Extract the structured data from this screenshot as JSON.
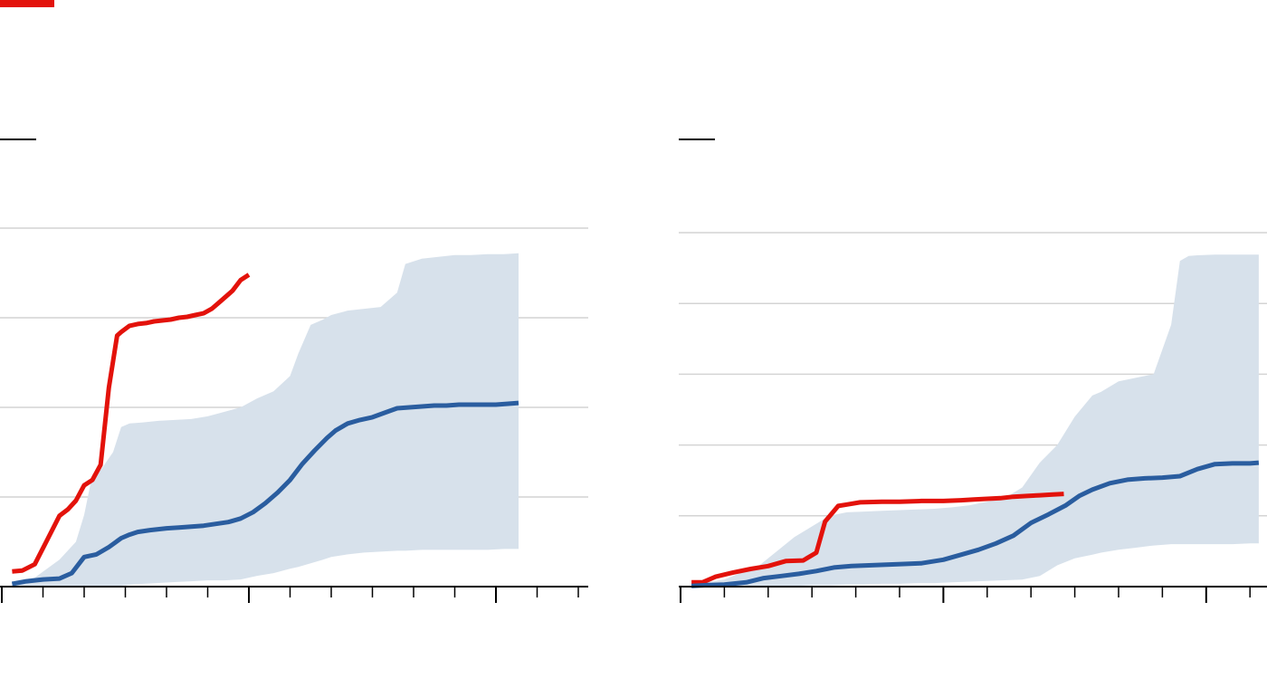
{
  "colors": {
    "accent": "#e3120b",
    "current": "#e3120b",
    "average": "#2a5d9f",
    "range": "#d7e1eb",
    "grid": "#d4d4d4",
    "axis": "#000000"
  },
  "chart_data": [
    {
      "type": "line",
      "grid": true,
      "x_ticks": [
        0,
        1,
        2,
        3,
        4,
        5,
        6,
        7,
        8,
        9,
        10,
        11,
        12,
        13,
        14
      ],
      "xlim": [
        0,
        14
      ],
      "ylim": [
        0,
        4
      ],
      "gridlines": [
        1,
        2,
        3,
        4
      ],
      "series": [
        {
          "role": "current",
          "x": [
            0.25,
            0.5,
            0.8,
            1.1,
            1.4,
            1.6,
            1.8,
            2.0,
            2.2,
            2.4,
            2.6,
            2.8,
            2.9,
            3.1,
            3.3,
            3.5,
            3.7,
            3.9,
            4.1,
            4.3,
            4.5,
            4.7,
            4.9,
            5.1,
            5.3,
            5.6,
            5.8,
            6.0,
            6.2,
            6.4,
            6.6,
            6.75
          ],
          "y": [
            0.17,
            0.18,
            0.25,
            0.52,
            0.79,
            0.86,
            0.96,
            1.13,
            1.19,
            1.36,
            2.22,
            2.8,
            2.84,
            2.91,
            2.93,
            2.94,
            2.96,
            2.97,
            2.98,
            3.0,
            3.01,
            3.03,
            3.05,
            3.1,
            3.18,
            3.3,
            3.42,
            3.48,
            null,
            null,
            null,
            null
          ]
        },
        {
          "role": "average",
          "x": [
            0.25,
            0.6,
            1.0,
            1.4,
            1.7,
            2.0,
            2.3,
            2.6,
            2.9,
            3.1,
            3.3,
            3.6,
            3.8,
            4.0,
            4.3,
            4.6,
            4.9,
            5.2,
            5.5,
            5.8,
            6.1,
            6.4,
            6.7,
            7.0,
            7.3,
            7.6,
            7.9,
            8.1,
            8.4,
            8.7,
            9.0,
            9.3,
            9.6,
            9.9,
            10.2,
            10.5,
            10.8,
            11.1,
            11.4,
            11.7,
            12.0,
            12.3,
            12.55
          ],
          "y": [
            0.03,
            0.06,
            0.08,
            0.09,
            0.15,
            0.33,
            0.36,
            0.44,
            0.54,
            0.58,
            0.61,
            0.63,
            0.64,
            0.65,
            0.66,
            0.67,
            0.68,
            0.7,
            0.72,
            0.76,
            0.83,
            0.93,
            1.05,
            1.19,
            1.37,
            1.52,
            1.66,
            1.74,
            1.82,
            1.86,
            1.89,
            1.94,
            1.99,
            2.0,
            2.01,
            2.02,
            2.02,
            2.03,
            2.03,
            2.03,
            2.03,
            2.04,
            2.05
          ]
        }
      ],
      "band": {
        "x": [
          0.25,
          0.8,
          1.4,
          1.8,
          2.0,
          2.2,
          2.4,
          2.7,
          2.9,
          3.1,
          3.4,
          3.8,
          4.2,
          4.6,
          5.0,
          5.4,
          5.8,
          6.2,
          6.6,
          7.0,
          7.2,
          7.5,
          7.8,
          8.0,
          8.4,
          8.8,
          9.2,
          9.6,
          9.8,
          10.2,
          10.6,
          11.0,
          11.4,
          11.8,
          12.2,
          12.55
        ],
        "low": [
          0.0,
          0.0,
          0.0,
          0.0,
          0.0,
          0.0,
          0.0,
          0.01,
          0.01,
          0.02,
          0.03,
          0.04,
          0.05,
          0.06,
          0.07,
          0.07,
          0.08,
          0.12,
          0.15,
          0.2,
          0.22,
          0.26,
          0.3,
          0.33,
          0.36,
          0.38,
          0.39,
          0.4,
          0.4,
          0.41,
          0.41,
          0.41,
          0.41,
          0.41,
          0.42,
          0.42
        ],
        "high": [
          0.05,
          0.1,
          0.3,
          0.5,
          0.8,
          1.25,
          1.3,
          1.5,
          1.78,
          1.82,
          1.83,
          1.85,
          1.86,
          1.87,
          1.9,
          1.95,
          2.0,
          2.1,
          2.18,
          2.35,
          2.6,
          2.92,
          2.98,
          3.03,
          3.08,
          3.1,
          3.12,
          3.28,
          3.6,
          3.66,
          3.68,
          3.7,
          3.7,
          3.71,
          3.71,
          3.72
        ]
      }
    },
    {
      "type": "line",
      "grid": true,
      "x_ticks": [
        0,
        1,
        2,
        3,
        4,
        5,
        6,
        7,
        8,
        9,
        10,
        11,
        12,
        13,
        14
      ],
      "xlim": [
        0,
        13.5
      ],
      "ylim": [
        0,
        5
      ],
      "gridlines": [
        1,
        2,
        3,
        4,
        5
      ],
      "series": [
        {
          "role": "current",
          "x": [
            0.25,
            0.5,
            0.8,
            1.2,
            1.6,
            2.0,
            2.4,
            2.8,
            3.1,
            3.3,
            3.6,
            3.8,
            4.1,
            4.6,
            5.0,
            5.5,
            6.0,
            6.4,
            6.7,
            7.0,
            7.3,
            7.6,
            7.9,
            8.2,
            8.5,
            8.75
          ],
          "y": [
            0.06,
            0.06,
            0.14,
            0.2,
            0.25,
            0.29,
            0.36,
            0.37,
            0.48,
            0.92,
            1.14,
            1.16,
            1.19,
            1.2,
            1.2,
            1.21,
            1.21,
            1.22,
            1.23,
            1.24,
            1.25,
            1.27,
            1.28,
            1.29,
            1.3,
            1.31
          ]
        },
        {
          "role": "average",
          "x": [
            0.25,
            0.6,
            1.0,
            1.5,
            1.9,
            2.3,
            2.7,
            3.1,
            3.5,
            3.9,
            4.3,
            4.7,
            5.1,
            5.5,
            6.0,
            6.4,
            6.8,
            7.2,
            7.6,
            8.0,
            8.4,
            8.8,
            9.1,
            9.4,
            9.8,
            10.2,
            10.6,
            11.0,
            11.4,
            11.8,
            12.2,
            12.6,
            13.0,
            13.2
          ],
          "y": [
            0.01,
            0.02,
            0.03,
            0.06,
            0.12,
            0.15,
            0.18,
            0.22,
            0.27,
            0.29,
            0.3,
            0.31,
            0.32,
            0.33,
            0.38,
            0.45,
            0.52,
            0.61,
            0.72,
            0.9,
            1.02,
            1.15,
            1.28,
            1.37,
            1.46,
            1.51,
            1.53,
            1.54,
            1.56,
            1.66,
            1.73,
            1.74,
            1.74,
            1.75
          ]
        }
      ],
      "band": {
        "x": [
          0.25,
          1.0,
          1.8,
          2.2,
          2.6,
          3.0,
          3.4,
          3.8,
          4.2,
          4.6,
          5.0,
          5.4,
          5.8,
          6.2,
          6.6,
          7.0,
          7.4,
          7.8,
          8.2,
          8.6,
          9.0,
          9.4,
          9.6,
          10.0,
          10.4,
          10.8,
          11.2,
          11.4,
          11.6,
          11.8,
          12.2,
          12.6,
          13.0,
          13.2
        ],
        "low": [
          0.0,
          0.0,
          0.0,
          0.01,
          0.01,
          0.02,
          0.02,
          0.03,
          0.03,
          0.04,
          0.04,
          0.05,
          0.05,
          0.06,
          0.07,
          0.08,
          0.09,
          0.1,
          0.15,
          0.3,
          0.4,
          0.45,
          0.48,
          0.52,
          0.55,
          0.58,
          0.6,
          0.6,
          0.6,
          0.6,
          0.6,
          0.6,
          0.61,
          0.61
        ],
        "high": [
          0.03,
          0.1,
          0.3,
          0.5,
          0.7,
          0.85,
          1.0,
          1.05,
          1.06,
          1.07,
          1.08,
          1.09,
          1.1,
          1.12,
          1.15,
          1.2,
          1.25,
          1.4,
          1.75,
          2.0,
          2.4,
          2.7,
          2.75,
          2.9,
          2.95,
          3.0,
          3.7,
          4.6,
          4.67,
          4.68,
          4.69,
          4.69,
          4.69,
          4.69
        ]
      }
    }
  ]
}
